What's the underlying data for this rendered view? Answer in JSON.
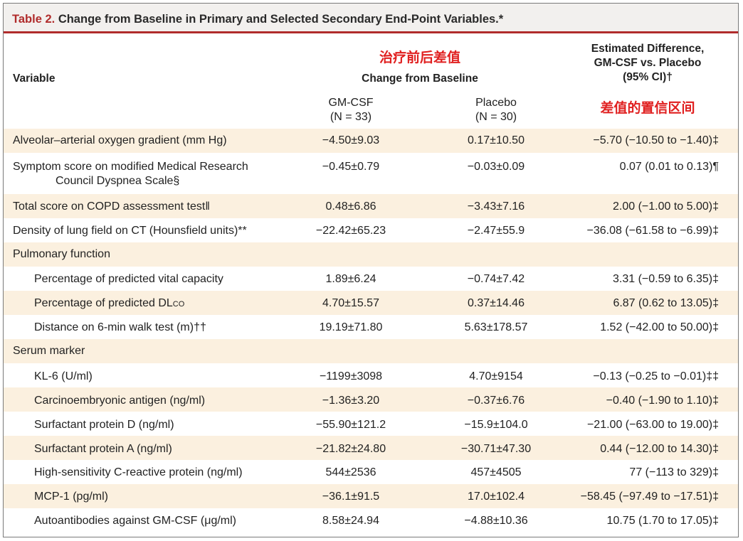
{
  "table": {
    "label": "Table 2.",
    "title": "Change from Baseline in Primary and Selected Secondary End-Point Variables.*"
  },
  "header": {
    "variable": "Variable",
    "change_cn": "治疗前后差值",
    "change": "Change from Baseline",
    "diff_line1": "Estimated Difference,",
    "diff_line2": "GM-CSF vs. Placebo",
    "diff_line3": "(95% CI)†",
    "diff_cn": "差值的置信区间",
    "gm_name": "GM-CSF",
    "gm_n": "(N = 33)",
    "pl_name": "Placebo",
    "pl_n": "(N = 30)"
  },
  "rows": [
    {
      "variable": "Alveolar–arterial oxygen gradient (mm Hg)",
      "gm": "−4.50±9.03",
      "pl": "0.17±10.50",
      "diff": "−5.70 (−10.50 to −1.40)‡"
    },
    {
      "variable": "Symptom score on modified Medical Research",
      "variable2": "Council Dyspnea Scale§",
      "gm": "−0.45±0.79",
      "pl": "−0.03±0.09",
      "diff": "0.07 (0.01 to 0.13)¶"
    },
    {
      "variable": "Total score on COPD assessment test‖",
      "gm": "0.48±6.86",
      "pl": "−3.43±7.16",
      "diff": "2.00 (−1.00 to 5.00)‡"
    },
    {
      "variable": "Density of lung field on CT (Hounsfield units)**",
      "gm": "−22.42±65.23",
      "pl": "−2.47±55.9",
      "diff": "−36.08 (−61.58 to −6.99)‡"
    },
    {
      "variable": "Pulmonary function"
    },
    {
      "variable": "Percentage of predicted vital capacity",
      "gm": "1.89±6.24",
      "pl": "−0.74±7.42",
      "diff": "3.31 (−0.59 to 6.35)‡"
    },
    {
      "variable": "Percentage of predicted DL",
      "variable_sc": "co",
      "gm": "4.70±15.57",
      "pl": "0.37±14.46",
      "diff": "6.87 (0.62 to 13.05)‡"
    },
    {
      "variable": "Distance on 6-min walk test (m)††",
      "gm": "19.19±71.80",
      "pl": "5.63±178.57",
      "diff": "1.52 (−42.00 to 50.00)‡"
    },
    {
      "variable": "Serum marker"
    },
    {
      "variable": "KL-6 (U/ml)",
      "gm": "−1199±3098",
      "pl": "4.70±9154",
      "diff": "−0.13 (−0.25 to −0.01)‡‡"
    },
    {
      "variable": "Carcinoembryonic antigen (ng/ml)",
      "gm": "−1.36±3.20",
      "pl": "−0.37±6.76",
      "diff": "−0.40 (−1.90 to 1.10)‡"
    },
    {
      "variable": "Surfactant protein D (ng/ml)",
      "gm": "−55.90±121.2",
      "pl": "−15.9±104.0",
      "diff": "−21.00 (−63.00 to 19.00)‡"
    },
    {
      "variable": "Surfactant protein A (ng/ml)",
      "gm": "−21.82±24.80",
      "pl": "−30.71±47.30",
      "diff": "0.44 (−12.00 to 14.30)‡"
    },
    {
      "variable": "High-sensitivity C-reactive protein (ng/ml)",
      "gm": "544±2536",
      "pl": "457±4505",
      "diff": "77 (−113 to 329)‡"
    },
    {
      "variable": "MCP-1 (pg/ml)",
      "gm": "−36.1±91.5",
      "pl": "17.0±102.4",
      "diff": "−58.45 (−97.49 to −17.51)‡"
    },
    {
      "variable": "Autoantibodies against GM-CSF (μg/ml)",
      "gm": "8.58±24.94",
      "pl": "−4.88±10.36",
      "diff": "10.75 (1.70 to 17.05)‡"
    }
  ]
}
